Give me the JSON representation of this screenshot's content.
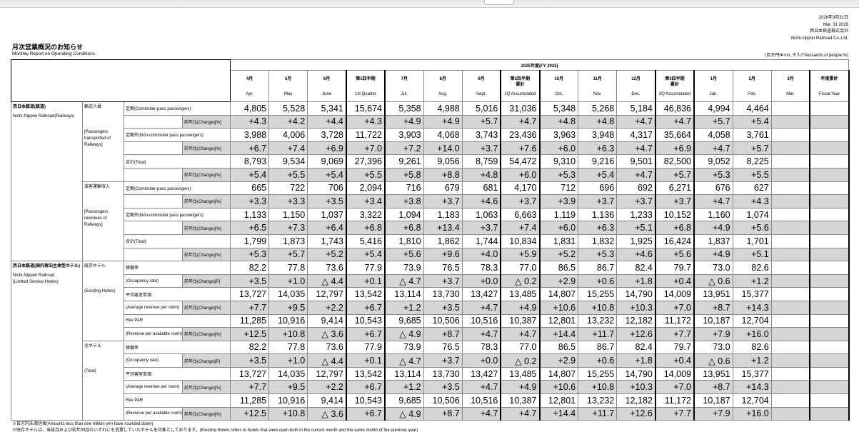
{
  "header": {
    "date_ja": "2026年3月31日",
    "date_en": "Mar. 31 2026",
    "company_ja": "西日本鉄道株式会社",
    "company_en": "Nishi-nippon Railroad Co.,Ltd.",
    "title_ja": "月次営業概況のお知らせ",
    "title_en": "Monthly Report on Operating Conditions",
    "units": "(百万円/¥-mil.,千人/Thousands of people,%)"
  },
  "table": {
    "fy_label": "2025年度(FY 2025)",
    "columns": [
      {
        "ja": [
          "4月"
        ],
        "en": "Apr."
      },
      {
        "ja": [
          "5月"
        ],
        "en": "May"
      },
      {
        "ja": [
          "6月"
        ],
        "en": "June"
      },
      {
        "ja": [
          "第1四半期"
        ],
        "en": "1st Quarter"
      },
      {
        "ja": [
          "7月"
        ],
        "en": "Jul."
      },
      {
        "ja": [
          "8月"
        ],
        "en": "Aug."
      },
      {
        "ja": [
          "9月"
        ],
        "en": "Sept."
      },
      {
        "ja": [
          "第2四半期",
          "累計"
        ],
        "en": "2Q Accumulated"
      },
      {
        "ja": [
          "10月"
        ],
        "en": "Oct."
      },
      {
        "ja": [
          "11月"
        ],
        "en": "Nov."
      },
      {
        "ja": [
          "12月"
        ],
        "en": "Dec."
      },
      {
        "ja": [
          "第3四半期",
          "累計"
        ],
        "en": "3Q Accumulated"
      },
      {
        "ja": [
          "1月"
        ],
        "en": "Jan."
      },
      {
        "ja": [
          "2月"
        ],
        "en": "Feb."
      },
      {
        "ja": [
          "3月"
        ],
        "en": "Mar."
      },
      {
        "ja": [
          "年度累計"
        ],
        "en": "Fiscal Year"
      }
    ],
    "sections": [
      {
        "company": [
          "西日本鉄道(鉄道)",
          "Nishi-Nippon Railroad(Railways)"
        ],
        "groups": [
          {
            "name": [
              "輸送人員",
              "[Passengers transported of Railways]"
            ],
            "items": [
              {
                "label": [
                  "定期(Commuter-pass passengers)"
                ],
                "change_label": "前年比(Change)[%]",
                "values": [
                  "4,805",
                  "5,528",
                  "5,341",
                  "15,674",
                  "5,358",
                  "4,988",
                  "5,016",
                  "31,036",
                  "5,348",
                  "5,268",
                  "5,184",
                  "46,836",
                  "4,994",
                  "4,464"
                ],
                "changes": [
                  "+4.3",
                  "+4.2",
                  "+4.4",
                  "+4.3",
                  "+4.9",
                  "+4.9",
                  "+5.7",
                  "+4.7",
                  "+4.8",
                  "+4.8",
                  "+4.7",
                  "+4.7",
                  "+5.7",
                  "+5.4"
                ]
              },
              {
                "label": [
                  "定期外(Non-commuter pass passengers)"
                ],
                "change_label": "前年比(Change)[%]",
                "values": [
                  "3,988",
                  "4,006",
                  "3,728",
                  "11,722",
                  "3,903",
                  "4,068",
                  "3,743",
                  "23,436",
                  "3,963",
                  "3,948",
                  "4,317",
                  "35,664",
                  "4,058",
                  "3,761"
                ],
                "changes": [
                  "+6.7",
                  "+7.4",
                  "+6.9",
                  "+7.0",
                  "+7.2",
                  "+14.0",
                  "+3.7",
                  "+7.6",
                  "+6.0",
                  "+6.3",
                  "+4.7",
                  "+6.9",
                  "+4.7",
                  "+5.7"
                ]
              },
              {
                "label": [
                  "合計(Total)"
                ],
                "change_label": "前年比(Change)[%]",
                "values": [
                  "8,793",
                  "9,534",
                  "9,069",
                  "27,396",
                  "9,261",
                  "9,056",
                  "8,759",
                  "54,472",
                  "9,310",
                  "9,216",
                  "9,501",
                  "82,500",
                  "9,052",
                  "8,225"
                ],
                "changes": [
                  "+5.4",
                  "+5.5",
                  "+5.4",
                  "+5.5",
                  "+5.8",
                  "+8.8",
                  "+4.8",
                  "+6.0",
                  "+5.3",
                  "+5.4",
                  "+4.7",
                  "+5.7",
                  "+5.3",
                  "+5.5"
                ]
              }
            ]
          },
          {
            "name": [
              "旅客運輸収入",
              "[Passengers revenues of Railways]"
            ],
            "items": [
              {
                "label": [
                  "定期(Commuter-pass passengers)"
                ],
                "change_label": "前年比(Change)[%]",
                "values": [
                  "665",
                  "722",
                  "706",
                  "2,094",
                  "716",
                  "679",
                  "681",
                  "4,170",
                  "712",
                  "696",
                  "692",
                  "6,271",
                  "676",
                  "627"
                ],
                "changes": [
                  "+3.3",
                  "+3.3",
                  "+3.5",
                  "+3.4",
                  "+3.8",
                  "+3.7",
                  "+4.6",
                  "+3.7",
                  "+3.9",
                  "+3.7",
                  "+3.7",
                  "+3.7",
                  "+4.7",
                  "+4.3"
                ]
              },
              {
                "label": [
                  "定期外(Non-commuter pass passengers)"
                ],
                "change_label": "前年比(Change)[%]",
                "values": [
                  "1,133",
                  "1,150",
                  "1,037",
                  "3,322",
                  "1,094",
                  "1,183",
                  "1,063",
                  "6,663",
                  "1,119",
                  "1,136",
                  "1,233",
                  "10,152",
                  "1,160",
                  "1,074"
                ],
                "changes": [
                  "+6.5",
                  "+7.3",
                  "+6.4",
                  "+6.8",
                  "+6.8",
                  "+13.4",
                  "+3.7",
                  "+7.4",
                  "+6.0",
                  "+6.3",
                  "+5.1",
                  "+6.8",
                  "+4.9",
                  "+5.6"
                ]
              },
              {
                "label": [
                  "合計(Total)"
                ],
                "change_label": "前年比(Change)[%]",
                "values": [
                  "1,799",
                  "1,873",
                  "1,743",
                  "5,416",
                  "1,810",
                  "1,862",
                  "1,744",
                  "10,834",
                  "1,831",
                  "1,832",
                  "1,925",
                  "16,424",
                  "1,837",
                  "1,701"
                ],
                "changes": [
                  "+5.3",
                  "+5.7",
                  "+5.2",
                  "+5.4",
                  "+5.6",
                  "+9.6",
                  "+4.0",
                  "+5.9",
                  "+5.2",
                  "+5.3",
                  "+4.6",
                  "+5.6",
                  "+4.9",
                  "+5.1"
                ]
              }
            ]
          }
        ]
      },
      {
        "company": [
          "西日本鉄道(国内宿泊主体型ホテル)",
          "Nishi-Nippon Railroad",
          "(Limited Service Hotels)"
        ],
        "groups": [
          {
            "name": [
              "既存ホテル",
              "(Existing Hotels)"
            ],
            "items": [
              {
                "label": [
                  "稼働率",
                  "(Occupancy rate)"
                ],
                "change_label": "前年比(Change)[P]",
                "values": [
                  "82.2",
                  "77.8",
                  "73.6",
                  "77.9",
                  "73.9",
                  "76.5",
                  "78.3",
                  "77.0",
                  "86.5",
                  "86.7",
                  "82.4",
                  "79.7",
                  "73.0",
                  "82.6"
                ],
                "changes": [
                  "+3.5",
                  "+1.0",
                  "△ 4.4",
                  "+0.1",
                  "△ 4.7",
                  "+3.7",
                  "+0.0",
                  "△ 0.2",
                  "+2.9",
                  "+0.6",
                  "+1.8",
                  "+0.4",
                  "△ 0.6",
                  "+1.2"
                ]
              },
              {
                "label": [
                  "平均客室単価",
                  "(Average revenue per room)"
                ],
                "change_label": "前年比(Change)[%]",
                "values": [
                  "13,727",
                  "14,035",
                  "12,797",
                  "13,542",
                  "13,114",
                  "13,730",
                  "13,427",
                  "13,485",
                  "14,807",
                  "15,255",
                  "14,790",
                  "14,009",
                  "13,951",
                  "15,377"
                ],
                "changes": [
                  "+7.7",
                  "+9.5",
                  "+2.2",
                  "+6.7",
                  "+1.2",
                  "+3.5",
                  "+4.7",
                  "+4.9",
                  "+10.6",
                  "+10.8",
                  "+10.3",
                  "+7.0",
                  "+8.7",
                  "+14.3"
                ]
              },
              {
                "label": [
                  "Rev PAR",
                  "(Revenue per available room)"
                ],
                "change_label": "前年比(Change)[%]",
                "values": [
                  "11,285",
                  "10,916",
                  "9,414",
                  "10,543",
                  "9,685",
                  "10,506",
                  "10,516",
                  "10,387",
                  "12,801",
                  "13,232",
                  "12,182",
                  "11,172",
                  "10,187",
                  "12,704"
                ],
                "changes": [
                  "+12.5",
                  "+10.8",
                  "△ 3.6",
                  "+6.7",
                  "△ 4.9",
                  "+8.7",
                  "+4.7",
                  "+4.7",
                  "+14.4",
                  "+11.7",
                  "+12.6",
                  "+7.7",
                  "+7.9",
                  "+16.0"
                ]
              }
            ]
          },
          {
            "name": [
              "全ホテル",
              "(Total)"
            ],
            "items": [
              {
                "label": [
                  "稼働率",
                  "(Occupancy rate)"
                ],
                "change_label": "前年比(Change)[P]",
                "values": [
                  "82.2",
                  "77.8",
                  "73.6",
                  "77.9",
                  "73.9",
                  "76.5",
                  "78.3",
                  "77.0",
                  "86.5",
                  "86.7",
                  "82.4",
                  "79.7",
                  "73.0",
                  "82.6"
                ],
                "changes": [
                  "+3.5",
                  "+1.0",
                  "△ 4.4",
                  "+0.1",
                  "△ 4.7",
                  "+3.7",
                  "+0.0",
                  "△ 0.2",
                  "+2.9",
                  "+0.6",
                  "+1.8",
                  "+0.4",
                  "△ 0.6",
                  "+1.2"
                ]
              },
              {
                "label": [
                  "平均客室単価",
                  "(Average revenue per room)"
                ],
                "change_label": "前年比(Change)[%]",
                "values": [
                  "13,727",
                  "14,035",
                  "12,797",
                  "13,542",
                  "13,114",
                  "13,730",
                  "13,427",
                  "13,485",
                  "14,807",
                  "15,255",
                  "14,790",
                  "14,009",
                  "13,951",
                  "15,377"
                ],
                "changes": [
                  "+7.7",
                  "+9.5",
                  "+2.2",
                  "+6.7",
                  "+1.2",
                  "+3.5",
                  "+4.7",
                  "+4.9",
                  "+10.6",
                  "+10.8",
                  "+10.3",
                  "+7.0",
                  "+8.7",
                  "+14.3"
                ]
              },
              {
                "label": [
                  "Rev PAR",
                  "(Revenue per available room)"
                ],
                "change_label": "前年比(Change)[%]",
                "values": [
                  "11,285",
                  "10,916",
                  "9,414",
                  "10,543",
                  "9,685",
                  "10,506",
                  "10,516",
                  "10,387",
                  "12,801",
                  "13,232",
                  "12,182",
                  "11,172",
                  "10,187",
                  "12,704"
                ],
                "changes": [
                  "+12.5",
                  "+10.8",
                  "△ 3.6",
                  "+6.7",
                  "△ 4.9",
                  "+8.7",
                  "+4.7",
                  "+4.7",
                  "+14.4",
                  "+11.7",
                  "+12.6",
                  "+7.7",
                  "+7.9",
                  "+16.0"
                ]
              }
            ]
          }
        ]
      }
    ]
  },
  "notes": [
    "※百万円未満切捨(Amounts less than one million yen have rounded down)",
    "※既存ホテルは、当該月および前年同月のいずれにも営業していたホテルを対象としております。(Existing Hotels refers to hotels that were open both in the current month and the same month of the previous year)"
  ]
}
